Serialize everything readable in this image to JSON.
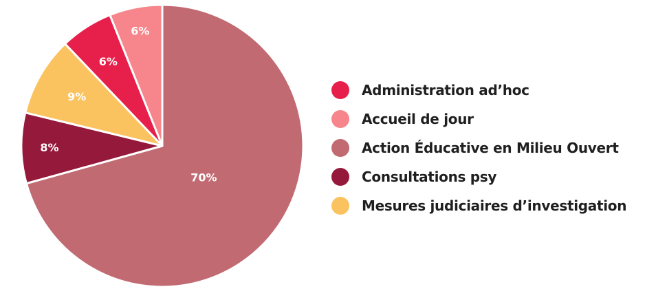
{
  "chart_data": {
    "type": "pie",
    "title": "",
    "legend_position": "right",
    "slices": [
      {
        "label": "Action Éducative en Milieu Ouvert",
        "value": 70,
        "value_label": "70%",
        "color": "#c16a72"
      },
      {
        "label": "Consultations psy",
        "value": 8,
        "value_label": "8%",
        "color": "#95193a"
      },
      {
        "label": "Mesures judiciaires d’investigation",
        "value": 9,
        "value_label": "9%",
        "color": "#fbc35f"
      },
      {
        "label": "Administration ad’hoc",
        "value": 6,
        "value_label": "6%",
        "color": "#e6204a"
      },
      {
        "label": "Accueil de jour",
        "value": 6,
        "value_label": "6%",
        "color": "#f6868b"
      }
    ],
    "legend": [
      {
        "label": "Administration ad’hoc",
        "color": "#e6204a"
      },
      {
        "label": "Accueil de jour",
        "color": "#f6868b"
      },
      {
        "label": "Action Éducative en Milieu Ouvert",
        "color": "#c16a72"
      },
      {
        "label": "Consultations psy",
        "color": "#95193a"
      },
      {
        "label": "Mesures judiciaires d’investigation",
        "color": "#fbc35f"
      }
    ]
  }
}
